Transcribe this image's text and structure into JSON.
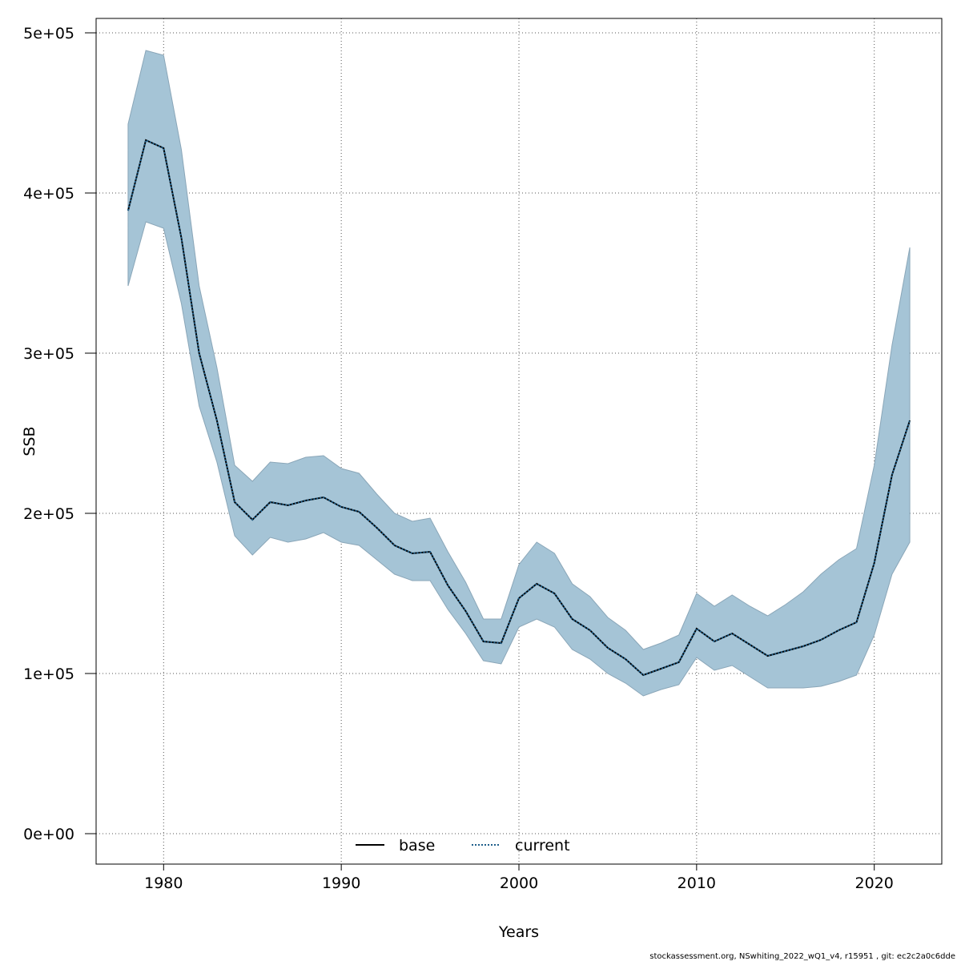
{
  "chart_data": {
    "type": "line",
    "xlabel": "Years",
    "ylabel": "SSB",
    "xlim": [
      1976.2,
      2023.8
    ],
    "ylim": [
      -19000,
      509000
    ],
    "x_ticks": [
      1980,
      1990,
      2000,
      2010,
      2020
    ],
    "x_tick_labels": [
      "1980",
      "1990",
      "2000",
      "2010",
      "2020"
    ],
    "y_ticks": [
      0,
      100000,
      200000,
      300000,
      400000,
      500000
    ],
    "y_tick_labels": [
      "0e+00",
      "1e+05",
      "2e+05",
      "3e+05",
      "4e+05",
      "5e+05"
    ],
    "grid": true,
    "legend_position": "bottom-center",
    "x": [
      1978,
      1979,
      1980,
      1981,
      1982,
      1983,
      1984,
      1985,
      1986,
      1987,
      1988,
      1989,
      1990,
      1991,
      1992,
      1993,
      1994,
      1995,
      1996,
      1997,
      1998,
      1999,
      2000,
      2001,
      2002,
      2003,
      2004,
      2005,
      2006,
      2007,
      2008,
      2009,
      2010,
      2011,
      2012,
      2013,
      2014,
      2015,
      2016,
      2017,
      2018,
      2019,
      2020,
      2021,
      2022
    ],
    "series": [
      {
        "name": "base",
        "style": "solid",
        "color": "#000000",
        "values": [
          389000,
          433000,
          428000,
          372000,
          300000,
          258000,
          207000,
          196000,
          207000,
          205000,
          208000,
          210000,
          204000,
          201000,
          191000,
          180000,
          175000,
          176000,
          155000,
          139000,
          120000,
          119000,
          147000,
          156000,
          150000,
          134000,
          127000,
          116000,
          109000,
          99000,
          103000,
          107000,
          128000,
          120000,
          125000,
          118000,
          111000,
          114000,
          117000,
          121000,
          127000,
          132000,
          169000,
          224000,
          258000
        ]
      },
      {
        "name": "current",
        "style": "dotted",
        "color": "#1f5f8b",
        "values": [
          389000,
          433000,
          428000,
          372000,
          300000,
          258000,
          207000,
          196000,
          207000,
          205000,
          208000,
          210000,
          204000,
          201000,
          191000,
          180000,
          175000,
          176000,
          155000,
          139000,
          120000,
          119000,
          147000,
          156000,
          150000,
          134000,
          127000,
          116000,
          109000,
          99000,
          103000,
          107000,
          128000,
          120000,
          125000,
          118000,
          111000,
          114000,
          117000,
          121000,
          127000,
          132000,
          169000,
          224000,
          258000
        ]
      }
    ],
    "confidence_band": {
      "color": "#a5c4d6",
      "upper": [
        443000,
        489000,
        486000,
        427000,
        342000,
        291000,
        230000,
        220000,
        232000,
        231000,
        235000,
        236000,
        228000,
        225000,
        212000,
        200000,
        195000,
        197000,
        176000,
        157000,
        134000,
        134000,
        168000,
        182000,
        175000,
        156000,
        148000,
        135000,
        127000,
        115000,
        119000,
        124000,
        150000,
        142000,
        149000,
        142000,
        136000,
        143000,
        151000,
        162000,
        171000,
        178000,
        230000,
        305000,
        366000
      ],
      "lower": [
        342000,
        382000,
        378000,
        331000,
        267000,
        232000,
        186000,
        174000,
        185000,
        182000,
        184000,
        188000,
        182000,
        180000,
        171000,
        162000,
        158000,
        158000,
        140000,
        125000,
        108000,
        106000,
        129000,
        134000,
        129000,
        115000,
        109000,
        100000,
        94000,
        86000,
        90000,
        93000,
        110000,
        102000,
        105000,
        98000,
        91000,
        91000,
        91000,
        92000,
        95000,
        99000,
        124000,
        162000,
        182000
      ]
    }
  },
  "footer_text": "stockassessment.org, NSwhiting_2022_wQ1_v4, r15951 , git: ec2c2a0c6dde"
}
